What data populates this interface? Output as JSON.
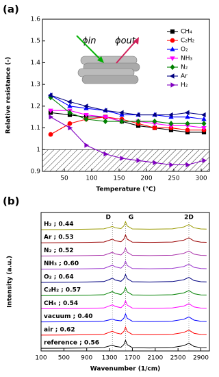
{
  "chart_data": [
    {
      "type": "line",
      "panel_label": "(a)",
      "x_label": "Temperature (°C)",
      "y_label": "Relative resistance (-)",
      "x": [
        25,
        60,
        90,
        125,
        155,
        185,
        215,
        245,
        275,
        305
      ],
      "xlim": [
        10,
        315
      ],
      "xticks": [
        50,
        100,
        150,
        200,
        250,
        300
      ],
      "ylim": [
        0.9,
        1.6
      ],
      "yticks": [
        0.9,
        1.0,
        1.1,
        1.2,
        1.3,
        1.4,
        1.5,
        1.6
      ],
      "hatch_below": 1.0,
      "legend": "upper right",
      "inset_labels": [
        "ϕin",
        "ϕout"
      ],
      "series": [
        {
          "name": "CH₄",
          "color": "#000000",
          "marker": "square",
          "values": [
            1.17,
            1.16,
            1.15,
            1.15,
            1.13,
            1.11,
            1.1,
            1.09,
            1.08,
            1.08
          ]
        },
        {
          "name": "C₂H₂",
          "color": "#ff0000",
          "marker": "circle",
          "values": [
            1.07,
            1.12,
            1.14,
            1.15,
            1.14,
            1.12,
            1.1,
            1.1,
            1.09,
            1.09
          ]
        },
        {
          "name": "O₂",
          "color": "#0000ff",
          "marker": "triangle-up",
          "values": [
            1.25,
            1.2,
            1.19,
            1.18,
            1.16,
            1.16,
            1.16,
            1.15,
            1.15,
            1.14
          ]
        },
        {
          "name": "NH₃",
          "color": "#ff00ff",
          "marker": "triangle-down",
          "values": [
            1.18,
            1.18,
            1.16,
            1.15,
            1.13,
            1.13,
            1.12,
            1.11,
            1.11,
            1.1
          ]
        },
        {
          "name": "N₂",
          "color": "#008000",
          "marker": "diamond",
          "values": [
            1.24,
            1.17,
            1.14,
            1.13,
            1.13,
            1.13,
            1.13,
            1.12,
            1.12,
            1.12
          ]
        },
        {
          "name": "Ar",
          "color": "#000080",
          "marker": "triangle-left",
          "values": [
            1.25,
            1.22,
            1.2,
            1.18,
            1.17,
            1.16,
            1.16,
            1.16,
            1.17,
            1.16
          ]
        },
        {
          "name": "H₂",
          "color": "#8000c0",
          "marker": "triangle-right",
          "values": [
            1.15,
            1.1,
            1.02,
            0.98,
            0.96,
            0.95,
            0.94,
            0.93,
            0.93,
            0.95
          ]
        }
      ]
    },
    {
      "type": "spectra",
      "panel_label": "(b)",
      "x_label": "Wavenumber (1/cm)",
      "y_label": "Intensity (a.u.)",
      "x": [
        100,
        500,
        900,
        1200,
        1300,
        1350,
        1400,
        1500,
        1550,
        1580,
        1610,
        1700,
        2000,
        2400,
        2600,
        2690,
        2780,
        2900,
        3000
      ],
      "xlim": [
        100,
        3050
      ],
      "xticks": [
        100,
        500,
        900,
        1300,
        1700,
        2100,
        2500,
        2900
      ],
      "ylim": [
        -0.2,
        10.3
      ],
      "peaks": [
        {
          "label": "D",
          "value": 1350
        },
        {
          "label": "G",
          "value": 1580
        },
        {
          "label": "2D",
          "value": 2690
        }
      ],
      "series": [
        {
          "name": "reference ; 0.56",
          "color": "#000000",
          "values": [
            0,
            0.01,
            0.03,
            0.06,
            0.18,
            0.24,
            0.15,
            0.08,
            0.28,
            0.6,
            0.28,
            0.05,
            0.03,
            0.06,
            0.2,
            0.38,
            0.14,
            0.05,
            0.04
          ]
        },
        {
          "name": "air ; 0.62",
          "color": "#ff0000",
          "values": [
            1,
            1.01,
            1.03,
            1.06,
            1.22,
            1.3,
            1.18,
            1.08,
            1.28,
            1.6,
            1.28,
            1.05,
            1.03,
            1.06,
            1.2,
            1.38,
            1.14,
            1.05,
            1.04
          ]
        },
        {
          "name": "vacuum ; 0.40",
          "color": "#0000ff",
          "values": [
            2,
            2.01,
            2.03,
            2.06,
            2.16,
            2.22,
            2.14,
            2.08,
            2.28,
            2.6,
            2.28,
            2.05,
            2.03,
            2.06,
            2.2,
            2.38,
            2.14,
            2.05,
            2.04
          ]
        },
        {
          "name": "CH₄ ; 0.54",
          "color": "#ff00ff",
          "values": [
            3,
            3.01,
            3.03,
            3.06,
            3.22,
            3.3,
            3.18,
            3.08,
            3.28,
            3.6,
            3.28,
            3.05,
            3.03,
            3.06,
            3.2,
            3.38,
            3.14,
            3.05,
            3.04
          ]
        },
        {
          "name": "C₂H₂ ; 0.57",
          "color": "#008000",
          "values": [
            4,
            4.01,
            4.03,
            4.06,
            4.22,
            4.3,
            4.18,
            4.08,
            4.28,
            4.6,
            4.28,
            4.05,
            4.03,
            4.06,
            4.2,
            4.38,
            4.14,
            4.05,
            4.04
          ]
        },
        {
          "name": "O₂ ; 0.64",
          "color": "#000080",
          "values": [
            5,
            5.01,
            5.03,
            5.06,
            5.22,
            5.32,
            5.18,
            5.08,
            5.28,
            5.6,
            5.28,
            5.05,
            5.03,
            5.06,
            5.2,
            5.38,
            5.14,
            5.05,
            5.04
          ]
        },
        {
          "name": "NH₃ ; 0.60",
          "color": "#9933cc",
          "values": [
            6,
            6.01,
            6.03,
            6.06,
            6.22,
            6.3,
            6.18,
            6.08,
            6.28,
            6.6,
            6.28,
            6.05,
            6.03,
            6.06,
            6.2,
            6.38,
            6.14,
            6.05,
            6.04
          ]
        },
        {
          "name": "N₂ ; 0.52",
          "color": "#aa33aa",
          "values": [
            7,
            7.01,
            7.03,
            7.06,
            7.2,
            7.28,
            7.16,
            7.08,
            7.28,
            7.6,
            7.28,
            7.05,
            7.03,
            7.06,
            7.2,
            7.38,
            7.14,
            7.05,
            7.04
          ]
        },
        {
          "name": "Ar ; 0.53",
          "color": "#990000",
          "values": [
            8,
            8.01,
            8.03,
            8.06,
            8.2,
            8.28,
            8.16,
            8.08,
            8.28,
            8.6,
            8.28,
            8.05,
            8.03,
            8.06,
            8.2,
            8.38,
            8.14,
            8.05,
            8.04
          ]
        },
        {
          "name": "H₂ ; 0.44",
          "color": "#999900",
          "values": [
            9,
            9.01,
            9.03,
            9.06,
            9.18,
            9.24,
            9.14,
            9.08,
            9.28,
            9.6,
            9.28,
            9.05,
            9.03,
            9.06,
            9.2,
            9.38,
            9.14,
            9.05,
            9.04
          ]
        }
      ]
    }
  ]
}
